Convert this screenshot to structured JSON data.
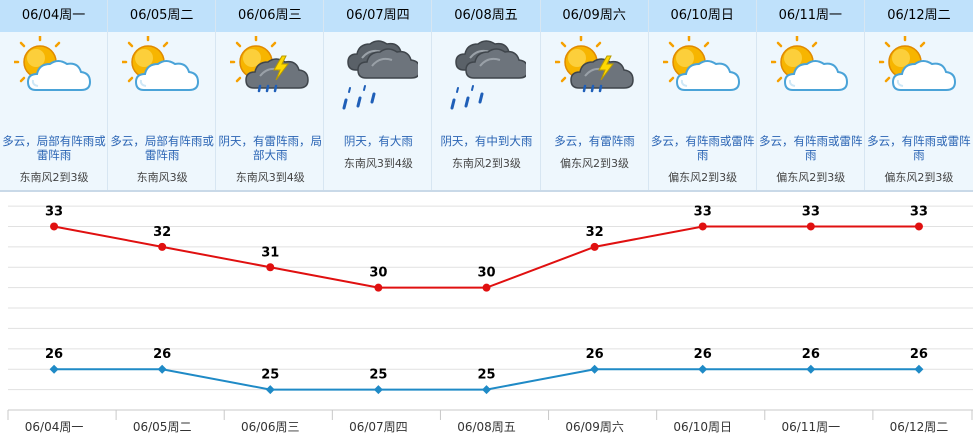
{
  "days": [
    {
      "date": "06/04周一",
      "icon": "partly-cloudy-icon",
      "desc": "多云，局部有阵雨或雷阵雨",
      "wind": "东南风2到3级"
    },
    {
      "date": "06/05周二",
      "icon": "partly-cloudy-icon",
      "desc": "多云，局部有阵雨或雷阵雨",
      "wind": "东南风3级"
    },
    {
      "date": "06/06周三",
      "icon": "thunder-shower-icon",
      "desc": "阴天，有雷阵雨，局部大雨",
      "wind": "东南风3到4级"
    },
    {
      "date": "06/07周四",
      "icon": "heavy-rain-icon",
      "desc": "阴天，有大雨",
      "wind": "东南风3到4级"
    },
    {
      "date": "06/08周五",
      "icon": "heavy-rain-icon",
      "desc": "阴天，有中到大雨",
      "wind": "东南风2到3级"
    },
    {
      "date": "06/09周六",
      "icon": "thunder-shower-icon",
      "desc": "多云，有雷阵雨",
      "wind": "偏东风2到3级"
    },
    {
      "date": "06/10周日",
      "icon": "partly-cloudy-icon",
      "desc": "多云，有阵雨或雷阵雨",
      "wind": "偏东风2到3级"
    },
    {
      "date": "06/11周一",
      "icon": "partly-cloudy-icon",
      "desc": "多云，有阵雨或雷阵雨",
      "wind": "偏东风2到3级"
    },
    {
      "date": "06/12周二",
      "icon": "partly-cloudy-icon",
      "desc": "多云，有阵雨或雷阵雨",
      "wind": "偏东风2到3级"
    }
  ],
  "chart_data": {
    "type": "line",
    "categories": [
      "06/04周一",
      "06/05周二",
      "06/06周三",
      "06/07周四",
      "06/08周五",
      "06/09周六",
      "06/10周日",
      "06/11周一",
      "06/12周二"
    ],
    "series": [
      {
        "values": [
          33,
          32,
          31,
          30,
          30,
          32,
          33,
          33,
          33
        ],
        "color": "#e01010"
      },
      {
        "values": [
          26,
          26,
          25,
          25,
          25,
          26,
          26,
          26,
          26
        ],
        "color": "#1f8ac6"
      }
    ],
    "ylim": [
      24,
      34.2
    ],
    "grid": true,
    "legend": "none"
  },
  "colors": {
    "header_bg": "#bfe1fb",
    "column_bg": "#eef7fd",
    "desc_text": "#2a64b4",
    "high_line": "#e01010",
    "low_line": "#1f8ac6"
  }
}
